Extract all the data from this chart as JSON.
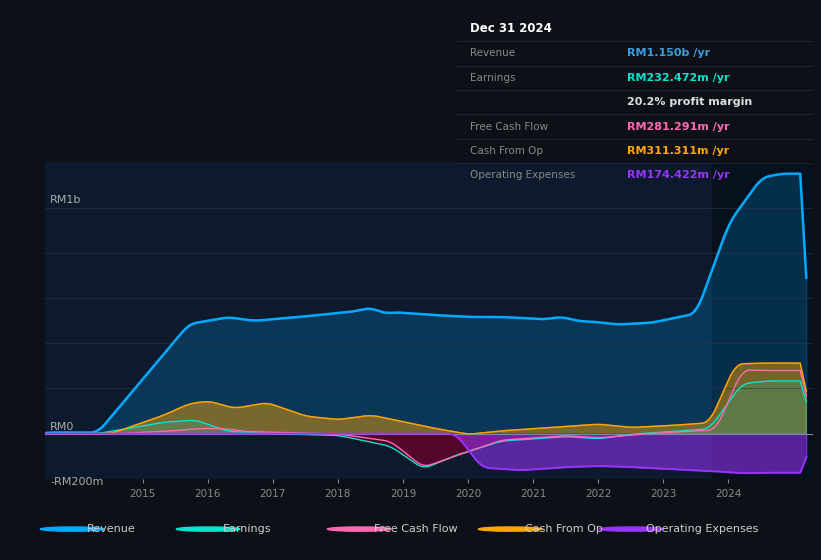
{
  "bg_color": "#0d1117",
  "chart_bg": "#0d1a2e",
  "title": "Dec 31 2024",
  "table_rows": [
    {
      "label": "Dec 31 2024",
      "value": "",
      "label_color": "#ffffff",
      "value_color": "#ffffff",
      "is_header": true
    },
    {
      "label": "Revenue",
      "value": "RM1.150b /yr",
      "label_color": "#888888",
      "value_color": "#3b9ddd",
      "is_header": false
    },
    {
      "label": "Earnings",
      "value": "RM232.472m /yr",
      "label_color": "#888888",
      "value_color": "#00e5cc",
      "is_header": false
    },
    {
      "label": "",
      "value": "20.2% profit margin",
      "label_color": "#888888",
      "value_color": "#dddddd",
      "is_header": false
    },
    {
      "label": "Free Cash Flow",
      "value": "RM281.291m /yr",
      "label_color": "#888888",
      "value_color": "#ff69b4",
      "is_header": false
    },
    {
      "label": "Cash From Op",
      "value": "RM311.311m /yr",
      "label_color": "#888888",
      "value_color": "#ffa500",
      "is_header": false
    },
    {
      "label": "Operating Expenses",
      "value": "RM174.422m /yr",
      "label_color": "#888888",
      "value_color": "#9933ff",
      "is_header": false
    }
  ],
  "ylim": [
    -200,
    1200
  ],
  "xlim_start": 2013.5,
  "xlim_end": 2025.3,
  "ylabel_top": "RM1b",
  "ylabel_zero": "RM0",
  "ylabel_neg": "-RM200m",
  "xtick_years": [
    2015,
    2016,
    2017,
    2018,
    2019,
    2020,
    2021,
    2022,
    2023,
    2024
  ],
  "revenue_color": "#00aaff",
  "earnings_color": "#00e5cc",
  "fcf_color": "#ff69b4",
  "cashop_color": "#ffa500",
  "opex_color": "#9933ff",
  "highlight_x_start": 2023.75,
  "legend": [
    {
      "label": "Revenue",
      "color": "#00aaff"
    },
    {
      "label": "Earnings",
      "color": "#00e5cc"
    },
    {
      "label": "Free Cash Flow",
      "color": "#ff69b4"
    },
    {
      "label": "Cash From Op",
      "color": "#ffa500"
    },
    {
      "label": "Operating Expenses",
      "color": "#9933ff"
    }
  ]
}
